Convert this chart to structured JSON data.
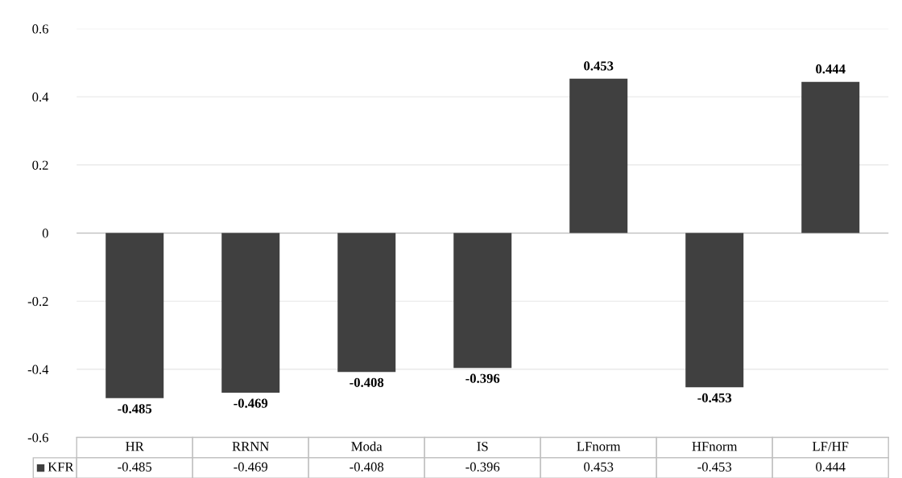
{
  "chart_data": {
    "type": "bar",
    "categories": [
      "HR",
      "RRNN",
      "Moda",
      "IS",
      "LFnorm",
      "HFnorm",
      "LF/HF"
    ],
    "series": [
      {
        "name": "KFR",
        "color": "#404040",
        "values": [
          -0.485,
          -0.469,
          -0.408,
          -0.396,
          0.453,
          -0.453,
          0.444
        ],
        "value_labels": [
          "-0.485",
          "-0.469",
          "-0.408",
          "-0.396",
          "0.453",
          "-0.453",
          "0.444"
        ]
      }
    ],
    "ylim": [
      -0.6,
      0.6
    ],
    "yticks": [
      -0.6,
      -0.4,
      -0.2,
      0,
      0.2,
      0.4,
      0.6
    ],
    "grid": "y",
    "data_labels": true,
    "legend": "bottom"
  }
}
